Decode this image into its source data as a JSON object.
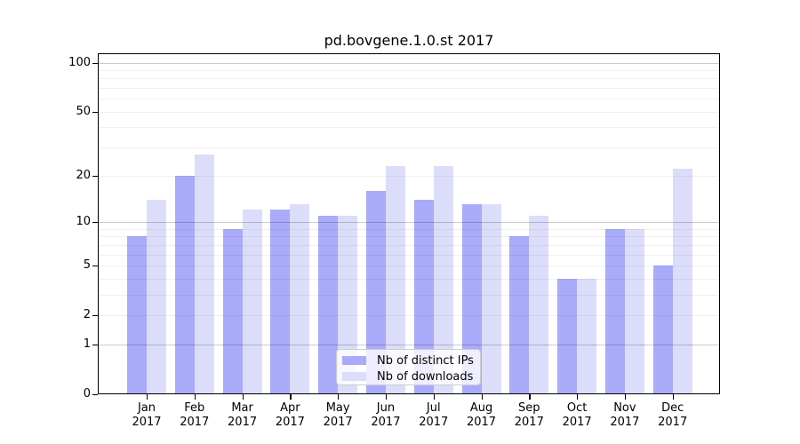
{
  "title": "pd.bovgene.1.0.st 2017",
  "chart_data": {
    "type": "bar",
    "title": "pd.bovgene.1.0.st 2017",
    "xlabel": "",
    "ylabel": "",
    "categories": [
      "Jan 2017",
      "Feb 2017",
      "Mar 2017",
      "Apr 2017",
      "May 2017",
      "Jun 2017",
      "Jul 2017",
      "Aug 2017",
      "Sep 2017",
      "Oct 2017",
      "Nov 2017",
      "Dec 2017"
    ],
    "series": [
      {
        "name": "Nb of distinct IPs",
        "color": "#a9abfa",
        "values": [
          8,
          20,
          9,
          12,
          11,
          16,
          14,
          13,
          8,
          4,
          9,
          5
        ]
      },
      {
        "name": "Nb of downloads",
        "color": "#dcddfb",
        "values": [
          14,
          27,
          12,
          13,
          11,
          23,
          23,
          13,
          11,
          4,
          9,
          22
        ]
      }
    ],
    "yscale": "log1p",
    "ylim": [
      0,
      114
    ],
    "ytick_labels": [
      0,
      1,
      2,
      5,
      10,
      20,
      50,
      100
    ],
    "grid": {
      "major": [
        1,
        10,
        100
      ],
      "minor": [
        2,
        3,
        4,
        5,
        6,
        7,
        8,
        9,
        20,
        30,
        40,
        50,
        60,
        70,
        80,
        90
      ],
      "major_color": "rgba(0,0,0,0.20)",
      "minor_color": "rgba(0,0,0,0.06)"
    },
    "legend_position": "lower center",
    "grid_on": true
  }
}
